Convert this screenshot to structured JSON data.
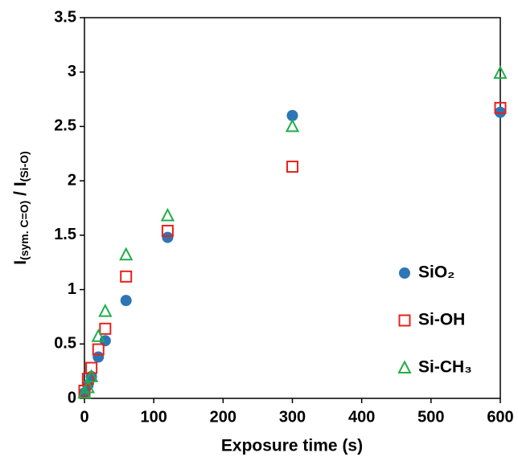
{
  "chart_data": {
    "type": "scatter",
    "xlabel": "Exposure time (s)",
    "ylabel_parts": [
      "I",
      "(sym. C=O)",
      " / I",
      "(Si-O)"
    ],
    "x": [
      0,
      5,
      10,
      20,
      30,
      60,
      120,
      300,
      600
    ],
    "xlim": [
      0,
      600
    ],
    "xticks": [
      0,
      100,
      200,
      300,
      400,
      500,
      600
    ],
    "ylim": [
      0,
      3.5
    ],
    "yticks": [
      0,
      0.5,
      1,
      1.5,
      2,
      2.5,
      3,
      3.5
    ],
    "grid": false,
    "legend": "lower right",
    "series": [
      {
        "name": "SiO₂",
        "color": "#2e75b6",
        "marker": "circle",
        "values": [
          0.05,
          0.12,
          0.2,
          0.38,
          0.53,
          0.9,
          1.48,
          2.6,
          2.63
        ]
      },
      {
        "name": "Si-OH",
        "color": "#e8211c",
        "marker": "square",
        "values": [
          0.07,
          0.18,
          0.28,
          0.45,
          0.64,
          1.12,
          1.54,
          2.13,
          2.67
        ]
      },
      {
        "name": "Si-CH₃",
        "color": "#1fae4a",
        "marker": "triangle",
        "values": [
          0.05,
          0.1,
          0.2,
          0.57,
          0.8,
          1.32,
          1.68,
          2.5,
          2.99
        ]
      }
    ]
  }
}
